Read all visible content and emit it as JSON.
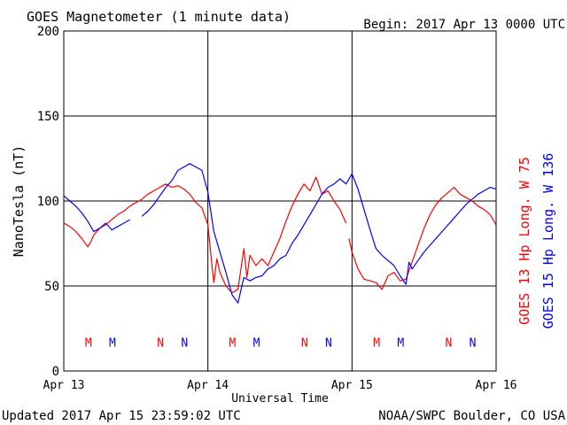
{
  "header": {
    "title": "GOES Magnetometer (1 minute data)",
    "begin": "Begin:  2017 Apr 13 0000 UTC"
  },
  "footer": {
    "updated": "Updated 2017 Apr 15 23:59:02 UTC",
    "credit": "NOAA/SWPC Boulder, CO USA"
  },
  "colors": {
    "goes13": "#ff0000",
    "goes15": "#0000ff",
    "grid": "#000000"
  },
  "chart_data": {
    "type": "line",
    "xlabel": "Universal Time",
    "ylabel": "NanoTesla (nT)",
    "xlim": [
      0,
      72
    ],
    "ylim": [
      0,
      200
    ],
    "x_unit": "hours since 2017 Apr 13 0000 UTC",
    "y_ticks": [
      0,
      50,
      100,
      150,
      200
    ],
    "x_ticks": [
      {
        "x": 0,
        "label": "Apr 13"
      },
      {
        "x": 24,
        "label": "Apr 14"
      },
      {
        "x": 48,
        "label": "Apr 15"
      },
      {
        "x": 72,
        "label": "Apr 16"
      }
    ],
    "grid": true,
    "series": [
      {
        "name": "GOES 13 Hp  Long. W 75",
        "color": "#ff0000",
        "segments": [
          [
            [
              0,
              87
            ],
            [
              1,
              85
            ],
            [
              2,
              82
            ],
            [
              3,
              78
            ],
            [
              4,
              73
            ],
            [
              4.5,
              76
            ],
            [
              5,
              80
            ],
            [
              6,
              84
            ],
            [
              7,
              86
            ],
            [
              8,
              89
            ],
            [
              9,
              92
            ],
            [
              10,
              94
            ],
            [
              11,
              97
            ],
            [
              12,
              99
            ],
            [
              13,
              101
            ],
            [
              14,
              104
            ],
            [
              15,
              106
            ],
            [
              16,
              108
            ],
            [
              17,
              110
            ],
            [
              18,
              108
            ],
            [
              19,
              109
            ],
            [
              20,
              107
            ],
            [
              21,
              104
            ],
            [
              22,
              99
            ],
            [
              23,
              96
            ],
            [
              24,
              86
            ],
            [
              24.5,
              68
            ],
            [
              25,
              52
            ],
            [
              25.5,
              66
            ],
            [
              26,
              58
            ],
            [
              27,
              50
            ],
            [
              28,
              46
            ],
            [
              29,
              48
            ],
            [
              30,
              72
            ],
            [
              30.5,
              55
            ],
            [
              31,
              68
            ],
            [
              32,
              62
            ],
            [
              33,
              66
            ],
            [
              34,
              62
            ],
            [
              35,
              70
            ],
            [
              36,
              78
            ],
            [
              37,
              88
            ],
            [
              38,
              97
            ],
            [
              39,
              104
            ],
            [
              40,
              110
            ],
            [
              41,
              106
            ],
            [
              42,
              114
            ],
            [
              43,
              104
            ],
            [
              44,
              106
            ],
            [
              45,
              100
            ],
            [
              46,
              95
            ],
            [
              47,
              87
            ]
          ],
          [
            [
              47.5,
              78
            ],
            [
              48,
              70
            ],
            [
              49,
              60
            ],
            [
              50,
              54
            ],
            [
              51,
              53
            ],
            [
              52,
              52
            ],
            [
              53,
              48
            ],
            [
              54,
              56
            ],
            [
              55,
              58
            ],
            [
              56,
              53
            ],
            [
              57,
              54
            ],
            [
              58,
              64
            ],
            [
              59,
              74
            ],
            [
              60,
              84
            ],
            [
              61,
              92
            ],
            [
              62,
              98
            ],
            [
              63,
              102
            ],
            [
              64,
              105
            ],
            [
              65,
              108
            ],
            [
              66,
              104
            ],
            [
              67,
              102
            ],
            [
              68,
              100
            ],
            [
              69,
              97
            ],
            [
              70,
              95
            ],
            [
              71,
              92
            ],
            [
              72,
              86
            ]
          ]
        ]
      },
      {
        "name": "GOES 15 Hp  Long. W 136",
        "color": "#0000ff",
        "segments": [
          [
            [
              0,
              103
            ],
            [
              1,
              100
            ],
            [
              2,
              97
            ],
            [
              3,
              93
            ],
            [
              4,
              88
            ],
            [
              5,
              82
            ],
            [
              6,
              84
            ],
            [
              7,
              87
            ],
            [
              8,
              83
            ],
            [
              9,
              85
            ],
            [
              10,
              87
            ],
            [
              11,
              89
            ]
          ],
          [
            [
              13,
              91
            ],
            [
              14,
              94
            ],
            [
              15,
              98
            ],
            [
              16,
              103
            ],
            [
              17,
              108
            ],
            [
              18,
              112
            ],
            [
              19,
              118
            ],
            [
              20,
              120
            ],
            [
              21,
              122
            ],
            [
              22,
              120
            ],
            [
              23,
              118
            ],
            [
              24,
              105
            ],
            [
              25,
              82
            ],
            [
              26,
              70
            ],
            [
              27,
              58
            ],
            [
              28,
              45
            ],
            [
              29,
              40
            ],
            [
              30,
              55
            ],
            [
              31,
              53
            ],
            [
              32,
              55
            ],
            [
              33,
              56
            ],
            [
              34,
              60
            ],
            [
              35,
              62
            ],
            [
              36,
              66
            ],
            [
              37,
              68
            ],
            [
              38,
              75
            ],
            [
              39,
              80
            ],
            [
              40,
              86
            ],
            [
              41,
              92
            ],
            [
              42,
              98
            ],
            [
              43,
              104
            ],
            [
              44,
              108
            ],
            [
              45,
              110
            ],
            [
              46,
              113
            ],
            [
              47,
              110
            ],
            [
              48,
              116
            ],
            [
              49,
              107
            ],
            [
              50,
              95
            ],
            [
              51,
              83
            ],
            [
              52,
              72
            ],
            [
              53,
              68
            ],
            [
              54,
              65
            ],
            [
              55,
              62
            ],
            [
              56,
              56
            ],
            [
              57,
              51
            ],
            [
              57.5,
              64
            ],
            [
              58,
              60
            ],
            [
              59,
              65
            ],
            [
              60,
              70
            ],
            [
              61,
              74
            ],
            [
              62,
              78
            ],
            [
              63,
              82
            ],
            [
              64,
              86
            ],
            [
              65,
              90
            ],
            [
              66,
              94
            ],
            [
              67,
              98
            ],
            [
              68,
              101
            ],
            [
              69,
              104
            ],
            [
              70,
              106
            ],
            [
              71,
              108
            ],
            [
              72,
              107
            ]
          ]
        ]
      }
    ],
    "markers": [
      {
        "x": 4.1,
        "label": "M",
        "color": "#ff0000"
      },
      {
        "x": 8.1,
        "label": "M",
        "color": "#0000ff"
      },
      {
        "x": 16.1,
        "label": "N",
        "color": "#ff0000"
      },
      {
        "x": 20.1,
        "label": "N",
        "color": "#0000ff"
      },
      {
        "x": 28.1,
        "label": "M",
        "color": "#ff0000"
      },
      {
        "x": 32.1,
        "label": "M",
        "color": "#0000ff"
      },
      {
        "x": 40.1,
        "label": "N",
        "color": "#ff0000"
      },
      {
        "x": 44.1,
        "label": "N",
        "color": "#0000ff"
      },
      {
        "x": 52.1,
        "label": "M",
        "color": "#ff0000"
      },
      {
        "x": 56.1,
        "label": "M",
        "color": "#0000ff"
      },
      {
        "x": 64.1,
        "label": "N",
        "color": "#ff0000"
      },
      {
        "x": 68.1,
        "label": "N",
        "color": "#0000ff"
      }
    ],
    "marker_y": 17
  }
}
